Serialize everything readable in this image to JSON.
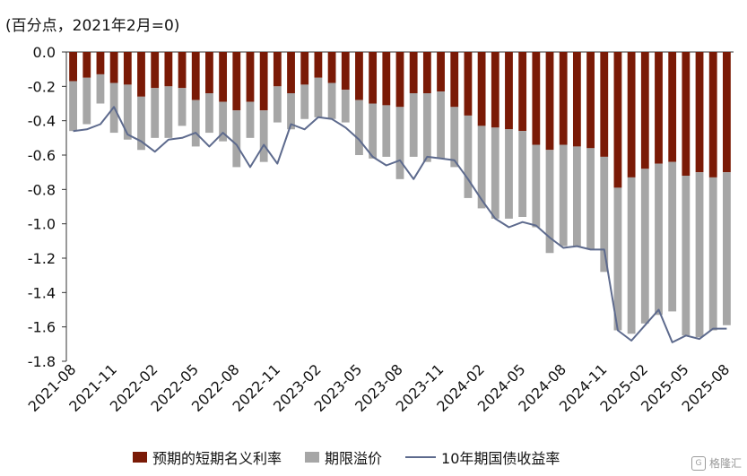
{
  "chart_data": {
    "type": "bar",
    "unit_label": "(百分点，2021年2月=0)",
    "ylim": [
      -1.8,
      0.0
    ],
    "yticks": [
      0.0,
      -0.2,
      -0.4,
      -0.6,
      -0.8,
      -1.0,
      -1.2,
      -1.4,
      -1.6,
      -1.8
    ],
    "ytick_labels": [
      "0.0",
      "-0.2",
      "-0.4",
      "-0.6",
      "-0.8",
      "-1.0",
      "-1.2",
      "-1.4",
      "-1.6",
      "-1.8"
    ],
    "xtick_labels": [
      "2021-08",
      "2021-11",
      "2022-02",
      "2022-05",
      "2022-08",
      "2022-11",
      "2023-02",
      "2023-05",
      "2023-08",
      "2023-11",
      "2024-02",
      "2024-05",
      "2024-08",
      "2024-11",
      "2025-02",
      "2025-05",
      "2025-08"
    ],
    "categories": [
      "2021-08",
      "2021-09",
      "2021-10",
      "2021-11",
      "2021-12",
      "2022-01",
      "2022-02",
      "2022-03",
      "2022-04",
      "2022-05",
      "2022-06",
      "2022-07",
      "2022-08",
      "2022-09",
      "2022-10",
      "2022-11",
      "2022-12",
      "2023-01",
      "2023-02",
      "2023-03",
      "2023-04",
      "2023-05",
      "2023-06",
      "2023-07",
      "2023-08",
      "2023-09",
      "2023-10",
      "2023-11",
      "2023-12",
      "2024-01",
      "2024-02",
      "2024-03",
      "2024-04",
      "2024-05",
      "2024-06",
      "2024-07",
      "2024-08",
      "2024-09",
      "2024-10",
      "2024-11",
      "2024-12",
      "2025-01",
      "2025-02",
      "2025-03",
      "2025-04",
      "2025-05",
      "2025-06",
      "2025-07",
      "2025-08"
    ],
    "stacked": true,
    "series": [
      {
        "name": "预期的短期名义利率",
        "kind": "bar",
        "color": "#7a1a06",
        "values": [
          -0.17,
          -0.15,
          -0.13,
          -0.18,
          -0.19,
          -0.26,
          -0.21,
          -0.2,
          -0.21,
          -0.28,
          -0.24,
          -0.29,
          -0.34,
          -0.29,
          -0.34,
          -0.2,
          -0.24,
          -0.19,
          -0.15,
          -0.18,
          -0.22,
          -0.28,
          -0.3,
          -0.31,
          -0.32,
          -0.24,
          -0.24,
          -0.23,
          -0.32,
          -0.37,
          -0.43,
          -0.44,
          -0.45,
          -0.46,
          -0.54,
          -0.57,
          -0.54,
          -0.55,
          -0.56,
          -0.61,
          -0.79,
          -0.73,
          -0.68,
          -0.65,
          -0.64,
          -0.72,
          -0.7,
          -0.73,
          -0.7
        ]
      },
      {
        "name": "期限溢价",
        "kind": "bar",
        "color": "#a6a6a6",
        "values": [
          -0.29,
          -0.27,
          -0.17,
          -0.29,
          -0.32,
          -0.31,
          -0.29,
          -0.3,
          -0.22,
          -0.27,
          -0.23,
          -0.23,
          -0.33,
          -0.21,
          -0.3,
          -0.21,
          -0.21,
          -0.2,
          -0.23,
          -0.21,
          -0.19,
          -0.32,
          -0.32,
          -0.3,
          -0.42,
          -0.37,
          -0.4,
          -0.39,
          -0.35,
          -0.48,
          -0.48,
          -0.53,
          -0.52,
          -0.5,
          -0.48,
          -0.6,
          -0.59,
          -0.58,
          -0.59,
          -0.67,
          -0.83,
          -0.91,
          -0.9,
          -0.88,
          -0.87,
          -0.93,
          -0.96,
          -0.89,
          -0.89
        ]
      },
      {
        "name": "10年期国债收益率",
        "kind": "line",
        "color": "#5d6a8d",
        "values": [
          -0.46,
          -0.45,
          -0.42,
          -0.32,
          -0.48,
          -0.52,
          -0.58,
          -0.51,
          -0.5,
          -0.47,
          -0.55,
          -0.47,
          -0.54,
          -0.67,
          -0.54,
          -0.65,
          -0.42,
          -0.45,
          -0.38,
          -0.39,
          -0.44,
          -0.51,
          -0.61,
          -0.66,
          -0.63,
          -0.74,
          -0.61,
          -0.62,
          -0.63,
          -0.74,
          -0.86,
          -0.97,
          -1.02,
          -0.99,
          -1.01,
          -1.08,
          -1.14,
          -1.13,
          -1.15,
          -1.15,
          -1.62,
          -1.68,
          -1.59,
          -1.5,
          -1.69,
          -1.65,
          -1.67,
          -1.61,
          -1.61
        ]
      }
    ],
    "legend_position": "bottom",
    "grid": false
  },
  "legend": {
    "items": [
      "预期的短期名义利率",
      "期限溢价",
      "10年期国债收益率"
    ]
  },
  "watermark": {
    "text": "格隆汇",
    "logo_glyph": "G"
  }
}
